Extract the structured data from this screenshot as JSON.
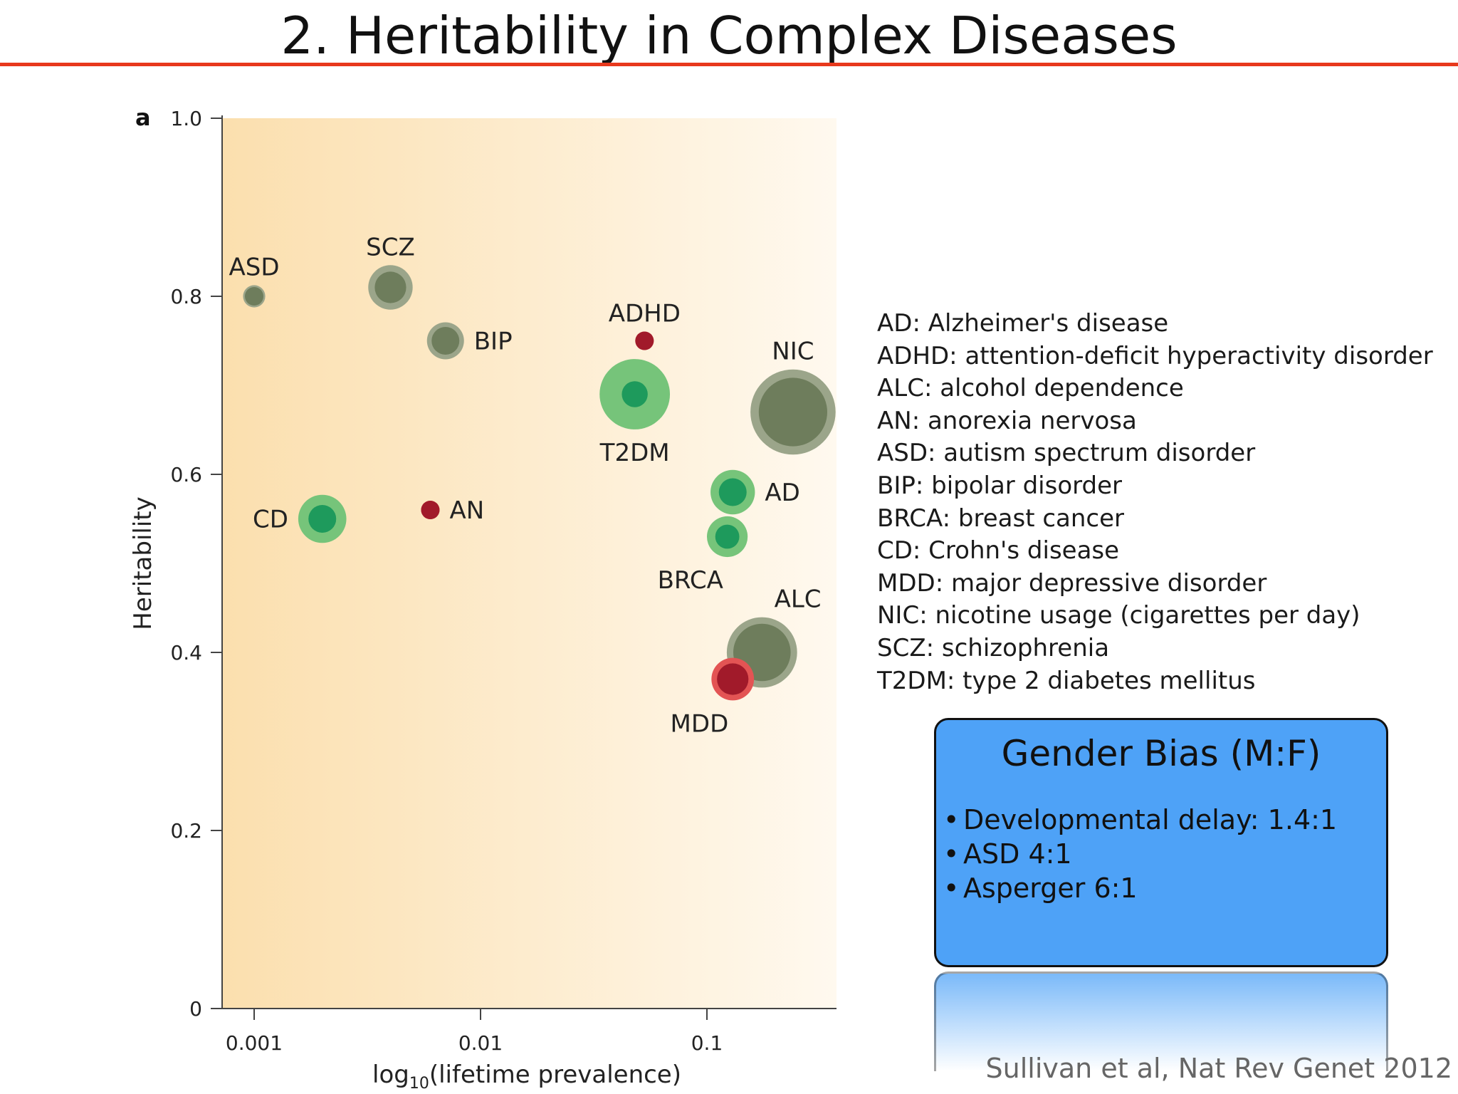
{
  "slide": {
    "title": "2. Heritability in Complex Diseases",
    "accent_color": "#e8391d",
    "citation": "Sullivan et al, Nat Rev Genet 2012"
  },
  "chart_data": {
    "type": "scatter",
    "panel_label": "a",
    "xlabel_prefix": "log",
    "xlabel_subscript": "10",
    "xlabel_suffix": "(lifetime prevalence)",
    "ylabel": "Heritability",
    "x_scale": "log",
    "xlim": [
      0.00069,
      0.37
    ],
    "ylim": [
      0,
      1.0
    ],
    "x_ticks": [
      {
        "value": 0.001,
        "label": "0.001"
      },
      {
        "value": 0.01,
        "label": "0.01"
      },
      {
        "value": 0.1,
        "label": "0.1"
      }
    ],
    "y_ticks": [
      {
        "value": 0,
        "label": "0"
      },
      {
        "value": 0.2,
        "label": "0.2"
      },
      {
        "value": 0.4,
        "label": "0.4"
      },
      {
        "value": 0.6,
        "label": "0.6"
      },
      {
        "value": 0.8,
        "label": "0.8"
      },
      {
        "value": 1.0,
        "label": "1.0"
      }
    ],
    "grid": false,
    "colors": {
      "psychiatric_outer": "#9ba58a",
      "psychiatric_inner": "#6e7d5c",
      "medical_outer": "#76c47a",
      "medical_inner": "#1e9a5c",
      "red_outer": "#e35454",
      "red_inner": "#a11a2a",
      "background_left": "#fbdfae",
      "background_right": "#fff9ef"
    },
    "points": [
      {
        "label": "ASD",
        "x": 0.001,
        "y": 0.8,
        "group": "psychiatric",
        "outer": 0.6,
        "inner": 0.5,
        "label_pos": "above"
      },
      {
        "label": "SCZ",
        "x": 0.004,
        "y": 0.81,
        "group": "psychiatric",
        "outer": 1.2,
        "inner": 0.85,
        "label_pos": "above"
      },
      {
        "label": "BIP",
        "x": 0.007,
        "y": 0.75,
        "group": "psychiatric",
        "outer": 1.0,
        "inner": 0.75,
        "label_pos": "right"
      },
      {
        "label": "ADHD",
        "x": 0.053,
        "y": 0.75,
        "group": "red",
        "outer": 0.5,
        "inner": 0.5,
        "label_pos": "above"
      },
      {
        "label": "T2DM",
        "x": 0.048,
        "y": 0.69,
        "group": "medical",
        "outer": 1.9,
        "inner": 0.7,
        "label_pos": "below"
      },
      {
        "label": "NIC",
        "x": 0.24,
        "y": 0.67,
        "group": "psychiatric",
        "outer": 2.3,
        "inner": 1.85,
        "label_pos": "above"
      },
      {
        "label": "CD",
        "x": 0.002,
        "y": 0.55,
        "group": "medical",
        "outer": 1.3,
        "inner": 0.75,
        "label_pos": "left"
      },
      {
        "label": "AN",
        "x": 0.006,
        "y": 0.56,
        "group": "red",
        "outer": 0.5,
        "inner": 0.5,
        "label_pos": "right"
      },
      {
        "label": "AD",
        "x": 0.13,
        "y": 0.58,
        "group": "medical",
        "outer": 1.2,
        "inner": 0.75,
        "label_pos": "right"
      },
      {
        "label": "BRCA",
        "x": 0.123,
        "y": 0.53,
        "group": "medical",
        "outer": 1.1,
        "inner": 0.65,
        "label_pos": "below-left"
      },
      {
        "label": "ALC",
        "x": 0.175,
        "y": 0.4,
        "group": "psychiatric",
        "outer": 1.9,
        "inner": 1.55,
        "label_pos": "above-right"
      },
      {
        "label": "MDD",
        "x": 0.13,
        "y": 0.37,
        "group": "red",
        "outer": 1.15,
        "inner": 0.85,
        "label_pos": "below-left"
      }
    ]
  },
  "legend": {
    "items": [
      "AD: Alzheimer's disease",
      "ADHD: attention-deficit hyperactivity disorder",
      "ALC: alcohol dependence",
      "AN: anorexia nervosa",
      "ASD: autism spectrum disorder",
      "BIP: bipolar disorder",
      "BRCA: breast cancer",
      "CD: Crohn's disease",
      "MDD: major depressive disorder",
      "NIC: nicotine usage (cigarettes per day)",
      "SCZ: schizophrenia",
      "T2DM: type 2 diabetes mellitus"
    ]
  },
  "gender_bias": {
    "title": "Gender Bias (M:F)",
    "background_color": "#4ea2f7",
    "items": [
      "Developmental delay: 1.4:1",
      "ASD 4:1",
      "Asperger 6:1"
    ]
  }
}
